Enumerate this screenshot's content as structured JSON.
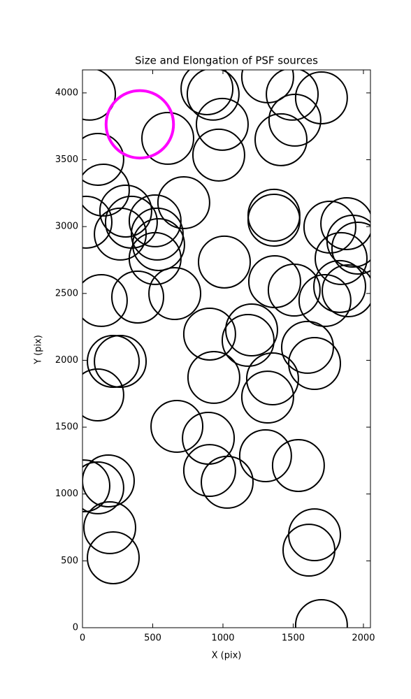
{
  "chart_data": {
    "type": "scatter",
    "title": "Size and Elongation of PSF sources",
    "x_label": "X (pix)",
    "y_label": "Y (pix)",
    "xlim": [
      0,
      2050
    ],
    "ylim": [
      0,
      4172
    ],
    "xticks": [
      0,
      500,
      1000,
      1500,
      2000
    ],
    "yticks": [
      0,
      500,
      1000,
      1500,
      2000,
      2500,
      3000,
      3500,
      4000
    ],
    "series": [
      {
        "color": "#000000",
        "radius": 184,
        "x": [
          50,
          109,
          149,
          25,
          607,
          886,
          930,
          995,
          970,
          1318,
          1493,
          1512,
          1413,
          1701,
          721,
          308,
          348,
          269,
          517,
          532,
          542,
          517,
          134,
          393,
          657,
          1010,
          1363,
          1363,
          1368,
          1507,
          1761,
          1841,
          1726,
          1831,
          1881,
          1925,
          1960,
          1891,
          905,
          1204,
          1179,
          219,
          269,
          109,
          935,
          1353,
          1318,
          1602,
          1652,
          672,
          896,
          905,
          1030,
          1303,
          1537,
          10,
          184,
          109,
          194,
          219,
          1652,
          1612,
          1701
        ],
        "values": [
          3990,
          3503,
          3273,
          3033,
          3660,
          4031,
          3990,
          3765,
          3535,
          4120,
          3990,
          3796,
          3650,
          3963,
          3179,
          3116,
          3033,
          2944,
          3043,
          2944,
          2865,
          2761,
          2447,
          2473,
          2499,
          2735,
          3085,
          3048,
          2588,
          2525,
          2996,
          2761,
          2447,
          2552,
          3022,
          2891,
          2839,
          2520,
          2196,
          2227,
          2149,
          1992,
          1992,
          1741,
          1872,
          1861,
          1725,
          2097,
          1976,
          1506,
          1417,
          1176,
          1088,
          1286,
          1213,
          1061,
          1098,
          1046,
          748,
          523,
          695,
          580,
          16
        ]
      },
      {
        "color": "#ff00ff",
        "radius": 240,
        "x": [
          408
        ],
        "values": [
          3765
        ]
      }
    ]
  }
}
